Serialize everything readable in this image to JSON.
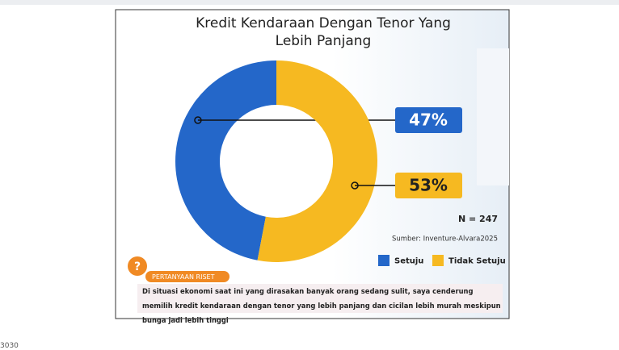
{
  "chart_data": {
    "type": "pie",
    "title": "Kredit Kendaraan Dengan Tenor Yang Lebih Panjang",
    "categories": [
      "Setuju",
      "Tidak Setuju"
    ],
    "values": [
      47,
      53
    ],
    "value_labels": [
      "47%",
      "53%"
    ],
    "colors": [
      "#2467c9",
      "#f6b921"
    ],
    "sample_note": "N = 247",
    "source": "Sumber: Inventure-Alvara2025",
    "question_label": "PERTANYAAN RISET",
    "question_icon": "?",
    "question": "Di situasi ekonomi saat ini yang dirasakan banyak orang sedang sulit, saya cenderung memilih kredit kendaraan dengan tenor yang lebih panjang dan cicilan lebih murah meskipun bunga jadi lebih tinggi",
    "footer_text": "3030"
  }
}
